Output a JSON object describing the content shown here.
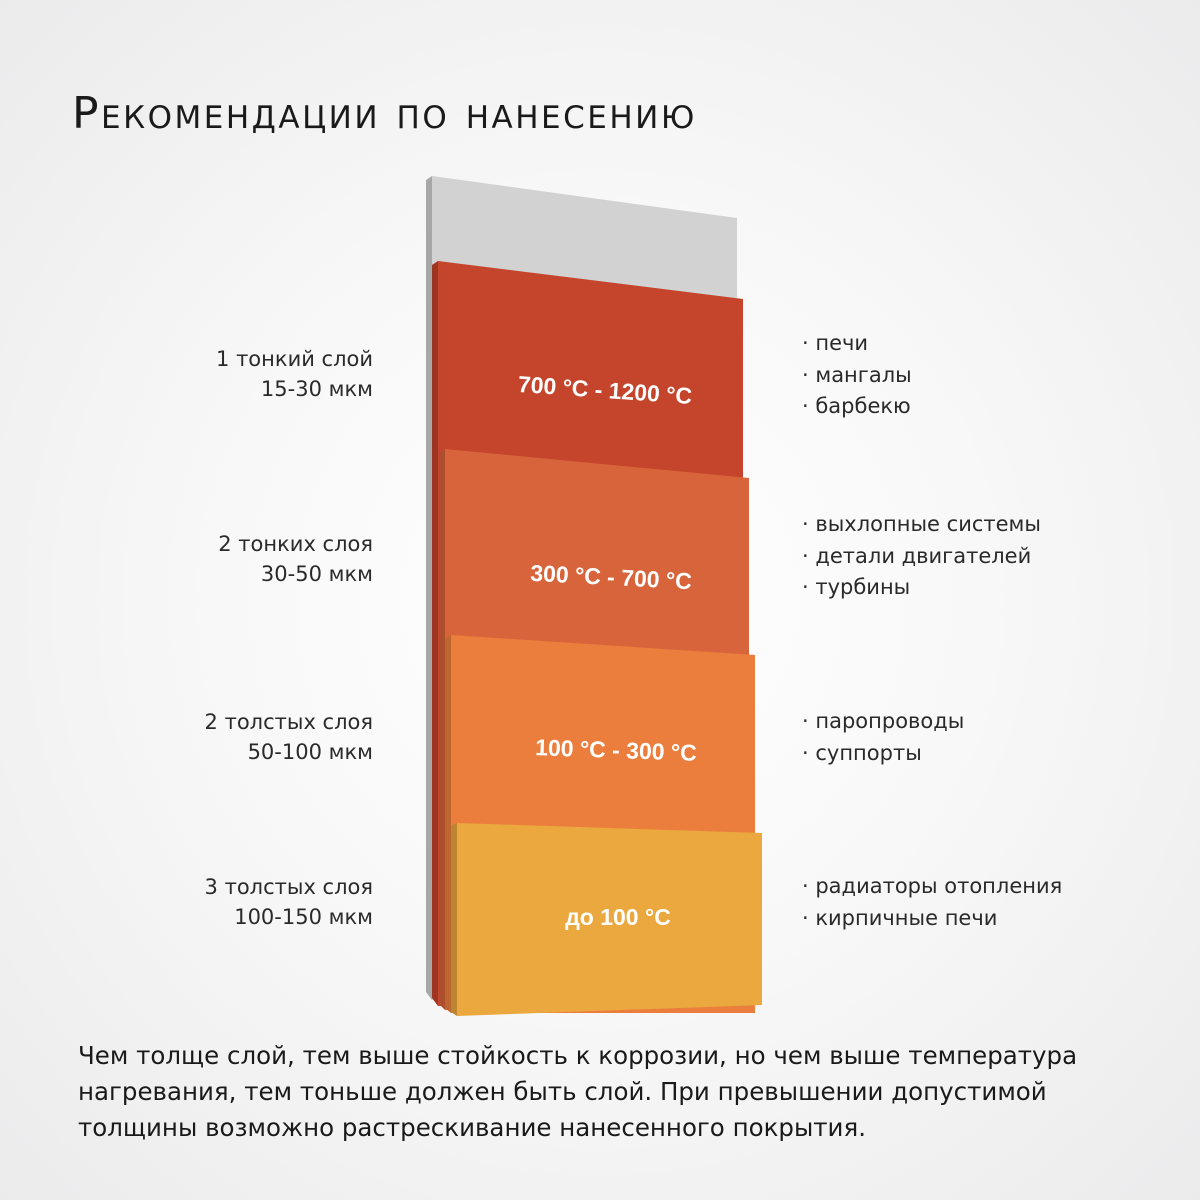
{
  "title": "Рекомендации по нанесению",
  "layers": [
    {
      "coats": "1 тонкий слой",
      "thickness": "15-30 мкм",
      "temperature": "700 °C - 1200 °C",
      "uses": [
        "· печи",
        "· мангалы",
        "· барбекю"
      ],
      "color": "#c4452b"
    },
    {
      "coats": "2 тонких слоя",
      "thickness": "30-50 мкм",
      "temperature": "300 °C - 700 °C",
      "uses": [
        "· выхлопные системы",
        "· детали двигателей",
        "· турбины"
      ],
      "color": "#d8643c"
    },
    {
      "coats": "2 толстых слоя",
      "thickness": "50-100 мкм",
      "temperature": "100 °C - 300 °C",
      "uses": [
        "· паропроводы",
        "· суппорты"
      ],
      "color": "#eb7e3d"
    },
    {
      "coats": "3 толстых слоя",
      "thickness": "100-150 мкм",
      "temperature": "до 100 °C",
      "uses": [
        "· радиаторы отопления",
        "· кирпичные печи"
      ],
      "color": "#eaa83e"
    }
  ],
  "substrate_color": "#d2d2d2",
  "note": "Чем толще слой, тем выше стойкость к коррозии, но чем выше температура нагревания, тем тоньше должен быть слой. При превышении допустимой толщины возможно растрескивание нанесенного покрытия."
}
